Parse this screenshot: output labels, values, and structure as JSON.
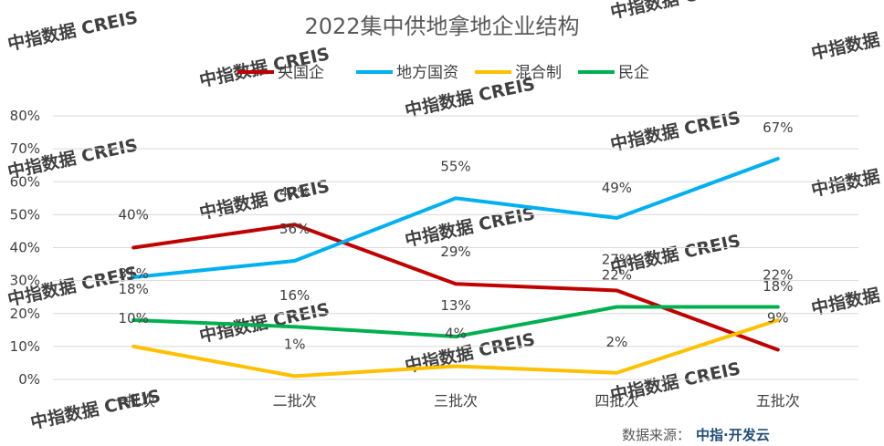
{
  "source": {
    "prefix": "数据来源：",
    "brand": "中指·开发云"
  },
  "watermark": "中指数据 CREIS",
  "colors": {
    "state_owned": "#c00000",
    "local_state": "#00b0f0",
    "mixed": "#ffc000",
    "private": "#00b050",
    "axis_text": "#404040",
    "grid": "#d9d9d9",
    "brand": "#1f4e79"
  },
  "chart_data": {
    "type": "line",
    "title": "2022集中供地拿地企业结构",
    "categories": [
      "一批次",
      "二批次",
      "三批次",
      "四批次",
      "五批次"
    ],
    "ylim": [
      0,
      80
    ],
    "yticks": [
      0,
      10,
      20,
      30,
      40,
      50,
      60,
      70,
      80
    ],
    "ytick_labels": [
      "0%",
      "10%",
      "20%",
      "30%",
      "40%",
      "50%",
      "60%",
      "70%",
      "80%"
    ],
    "y_unit": "%",
    "grid": true,
    "legend_position": "top-center",
    "series": [
      {
        "name": "央国企",
        "color": "#c00000",
        "values": [
          40,
          47,
          29,
          27,
          9
        ],
        "labels": [
          "40%",
          "47%",
          "29%",
          "27%",
          "9%"
        ]
      },
      {
        "name": "地方国资",
        "color": "#00b0f0",
        "values": [
          31,
          36,
          55,
          49,
          67
        ],
        "labels": [
          "31%",
          "36%",
          "55%",
          "49%",
          "67%"
        ]
      },
      {
        "name": "混合制",
        "color": "#ffc000",
        "values": [
          10,
          1,
          4,
          2,
          18
        ],
        "labels": [
          "10%",
          "1%",
          "4%",
          "2%",
          "18%"
        ]
      },
      {
        "name": "民企",
        "color": "#00b050",
        "values": [
          18,
          16,
          13,
          22,
          22
        ],
        "labels": [
          "18%",
          "16%",
          "13%",
          "22%",
          "22%"
        ]
      }
    ]
  }
}
